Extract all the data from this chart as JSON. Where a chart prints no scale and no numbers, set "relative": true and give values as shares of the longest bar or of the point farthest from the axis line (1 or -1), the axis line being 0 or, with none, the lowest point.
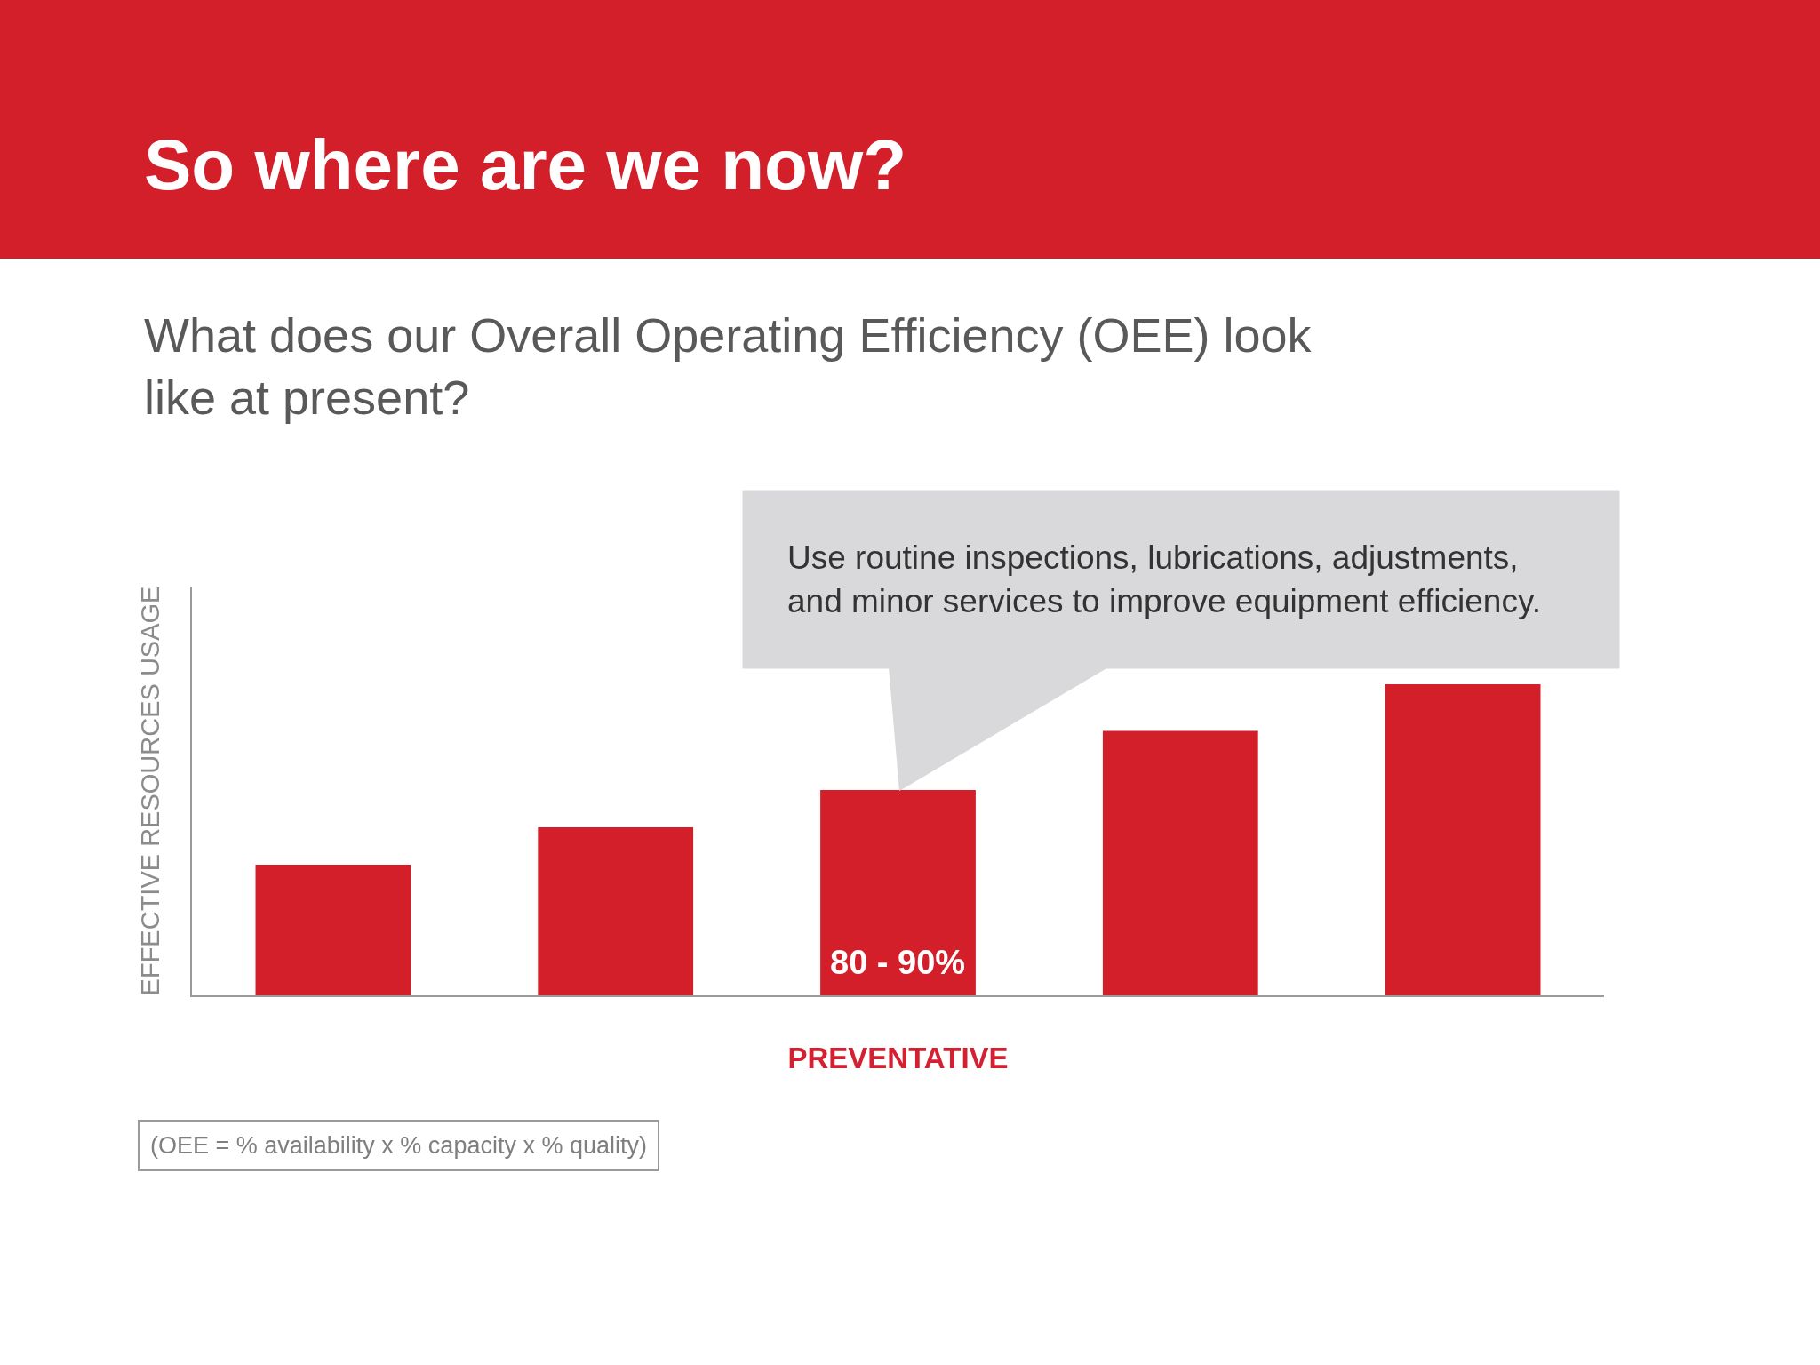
{
  "chart_data": {
    "type": "bar",
    "title": "So where are we now?",
    "subtitle": "What does our Overall Operating Efficiency (OEE) look like at present?",
    "ylabel": "EFFECTIVE RESOURCES USAGE",
    "categories": [
      null,
      null,
      "PREVENTATIVE",
      null,
      null
    ],
    "values": [
      0.42,
      0.54,
      0.66,
      0.85,
      1
    ],
    "relative": true,
    "color": "#d31f2a",
    "annotations": [
      "Use routine inspections, lubrications, adjustments, and minor services to improve equipment efficiency.",
      "80 - 90%",
      "(OEE = % availability x % capacity x % quality)"
    ]
  }
}
